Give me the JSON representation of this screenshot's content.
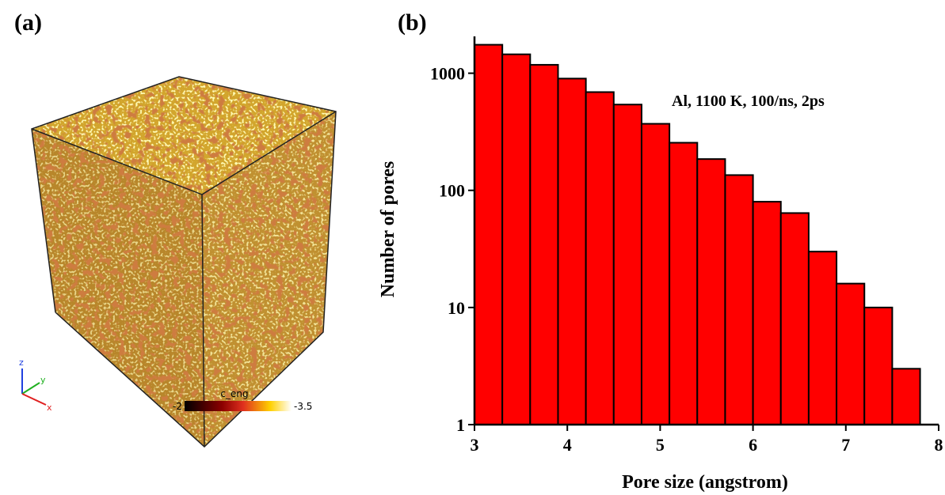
{
  "panel_a": {
    "label": "(a)",
    "colorbar": {
      "title": "c_eng",
      "min_label": "-2",
      "max_label": "-3.5"
    },
    "axes": {
      "z": "z",
      "y": "y",
      "x": "x"
    }
  },
  "chart_data": {
    "type": "histogram",
    "panel_label": "(b)",
    "annotation": "Al, 1100 K, 100/ns, 2ps",
    "xlabel": "Pore size (angstrom)",
    "ylabel": "Number of pores",
    "bins": [
      3,
      3.3,
      3.6,
      3.9,
      4.2,
      4.5,
      4.8,
      5.1,
      5.4,
      5.7,
      6,
      6.3,
      6.6,
      6.9,
      7.2,
      7.5,
      7.8
    ],
    "values": [
      1750,
      1450,
      1180,
      900,
      690,
      540,
      370,
      255,
      185,
      135,
      80,
      64,
      30,
      16,
      10,
      3
    ],
    "color": "#ff0000",
    "edge_color": "#000000",
    "xlim": [
      3,
      8
    ],
    "xticks": [
      3,
      4,
      5,
      6,
      7,
      8
    ],
    "ylim": [
      1,
      2000
    ],
    "yticks": [
      1,
      10,
      100,
      1000
    ],
    "log_y": true
  }
}
